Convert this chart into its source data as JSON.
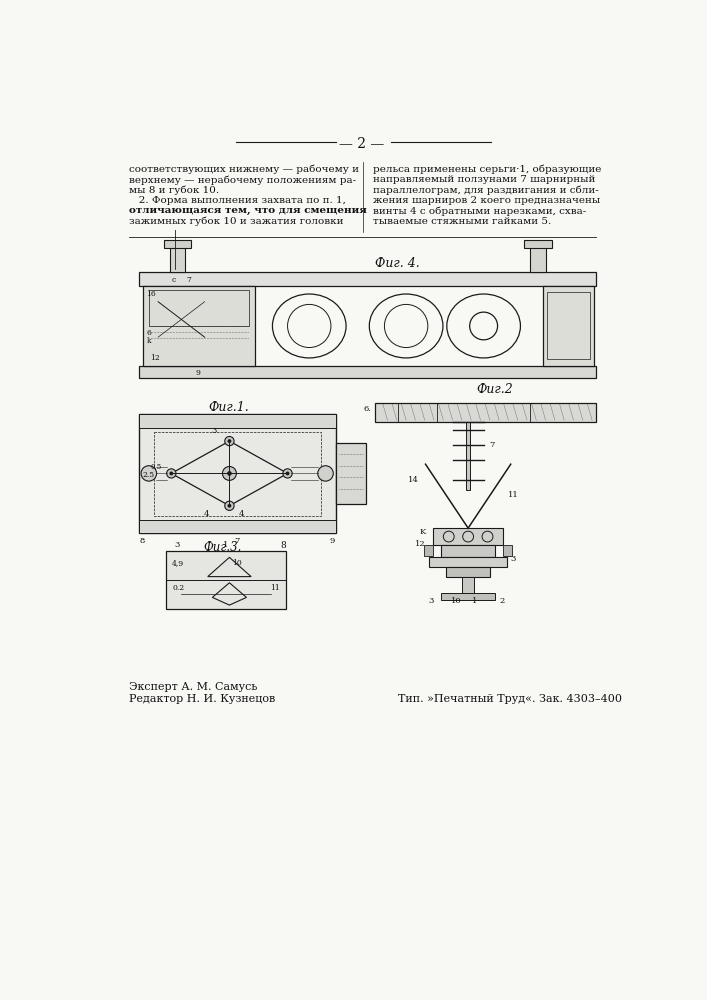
{
  "page_number": "2",
  "text_col1": "соответствующих нижнему — рабочему и\nверхнему — нерабочему положениям ра-\nмы 8 и губок 10.\n    2. Форма выполнения захвата по п. 1,\nотличающаяся тем, что для смещения\nзажимных губок 10 и зажатия головки",
  "text_col2": "рельса применены серьги·1, образующие\nнаправляемый ползунами 7 шарнирный\nпараллелограм, для раздвигания и сбли-\nжения шарниров 2 коего предназначены\nвинты 4 с обратными нарезками, схва-\nтываемые стяжными гайками 5.",
  "expert_line": "Эксперт А. М. Самусь",
  "editor_line": "Редактор Н. И. Кузнецов",
  "publisher_line": "Тип. »Печатный Труд«. Зак. 4303–400",
  "fig4_label": "Фиг. 4.",
  "fig1_label": "Фиг.1.",
  "fig2_label": "Фиг.2",
  "fig3_label": "Фиг.3.",
  "bg_color": "#f8f8f5",
  "text_color": "#111111",
  "line_color": "#1a1a1a"
}
